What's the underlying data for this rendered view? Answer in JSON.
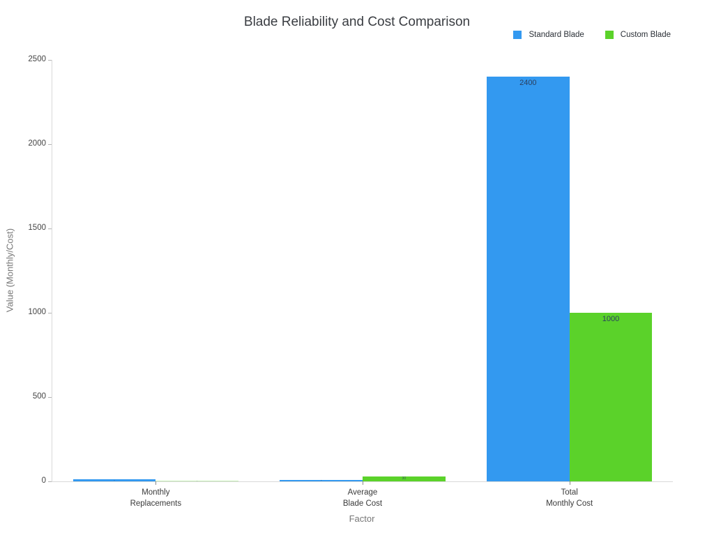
{
  "chart_data": {
    "type": "bar",
    "title": "Blade Reliability and Cost Comparison",
    "xlabel": "Factor",
    "ylabel": "Value (Monthly/Cost)",
    "categories": [
      "Monthly\nReplacements",
      "Average\nBlade Cost",
      "Total\nMonthly Cost"
    ],
    "series": [
      {
        "name": "Standard Blade",
        "color": "#3399f0",
        "values": [
          12,
          10,
          2400
        ]
      },
      {
        "name": "Custom Blade",
        "color": "#5bd22a",
        "values": [
          1,
          30,
          1000
        ]
      }
    ],
    "bar_value_labels": [
      [
        "12",
        "10",
        "2400"
      ],
      [
        "1",
        "30",
        "1000"
      ]
    ],
    "yticks": [
      0,
      500,
      1000,
      1500,
      2000,
      2500
    ],
    "ylim": [
      0,
      2500
    ],
    "grid": false,
    "legend_position": "top-right",
    "colors": {
      "axis_line": "#d9d9d9",
      "tick_text": "#444444",
      "axis_title_text": "#777777",
      "title_text": "#3a3d42",
      "bar_label_text": "#2a3f5f"
    }
  }
}
